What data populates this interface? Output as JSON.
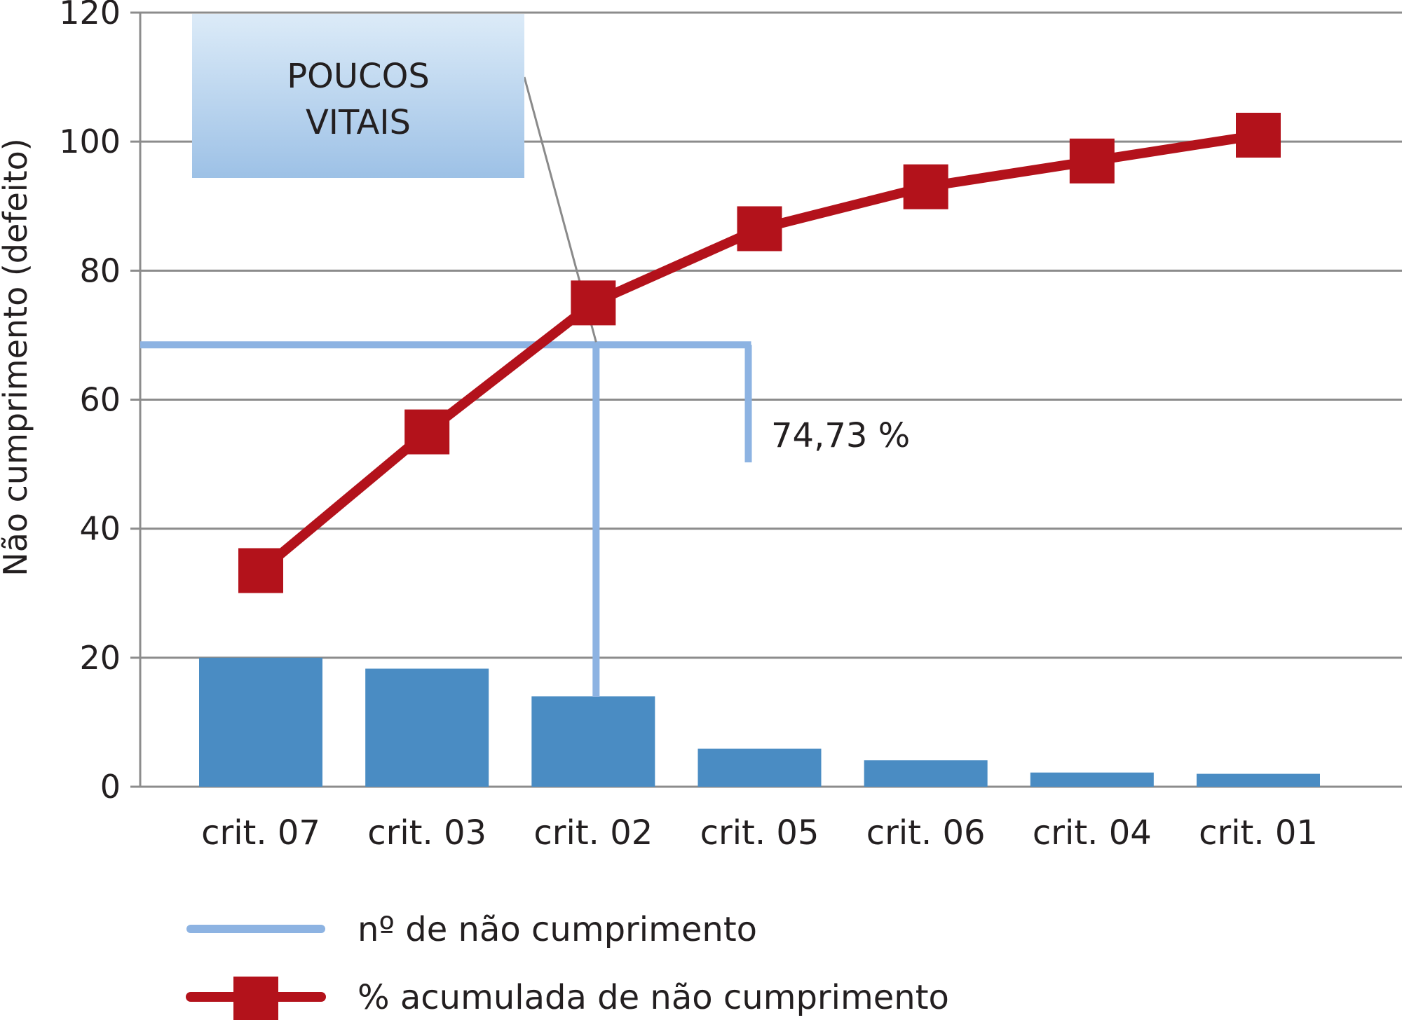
{
  "chart_data": {
    "type": "bar",
    "categories": [
      "crit. 07",
      "crit. 03",
      "crit. 02",
      "crit. 05",
      "crit. 06",
      "crit. 04",
      "crit. 01"
    ],
    "ylabel": "Não cumprimento (defeito)",
    "ylim": [
      0,
      120
    ],
    "yticks": [
      0,
      20,
      40,
      60,
      80,
      100,
      120
    ],
    "grid": true,
    "legend_placement": "bottom",
    "series": [
      {
        "name": "nº de não cumprimento",
        "type": "bar",
        "color": "#4a8cc3",
        "legend_color": "#8db3e2",
        "values": [
          20,
          18.3,
          14,
          5.9,
          4.1,
          2.2,
          2.0
        ]
      },
      {
        "name": "% acumulada de não cumprimento",
        "type": "line",
        "color": "#b3121b",
        "values": [
          33.5,
          55,
          75,
          86.5,
          93,
          97,
          101
        ]
      }
    ],
    "annotations": {
      "callout_text_line1": "POUCOS",
      "callout_text_line2": "VITAIS",
      "percent_label": "74,73 %",
      "threshold_value": 68.5
    }
  }
}
